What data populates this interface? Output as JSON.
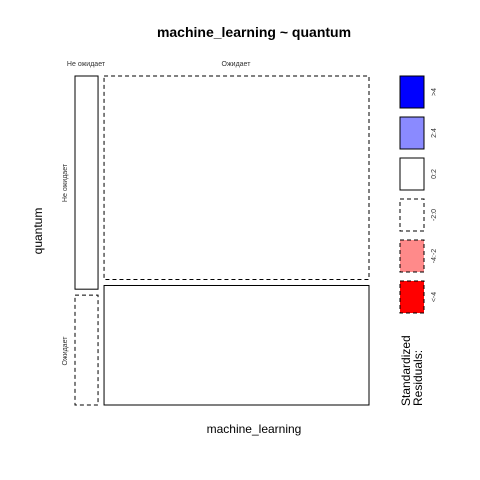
{
  "chart_data": {
    "type": "mosaic",
    "title": "machine_learning ~ quantum",
    "xlabel": "machine_learning",
    "ylabel": "quantum",
    "x_levels": [
      "Не ожидает",
      "Ожидает"
    ],
    "y_levels": [
      "Не ожидает",
      "Ожидает"
    ],
    "x_proportions": [
      0.08,
      0.92
    ],
    "cells": [
      {
        "x": "Не ожидает",
        "y": "Не ожидает",
        "row_proportion": 0.66,
        "residual_class": "0:2"
      },
      {
        "x": "Не ожидает",
        "y": "Ожидает",
        "row_proportion": 0.34,
        "residual_class": "-2:0"
      },
      {
        "x": "Ожидает",
        "y": "Не ожидает",
        "row_proportion": 0.63,
        "residual_class": "-2:0"
      },
      {
        "x": "Ожидает",
        "y": "Ожидает",
        "row_proportion": 0.37,
        "residual_class": "0:2"
      }
    ],
    "legend": {
      "title_lines": [
        "Standardized",
        "Residuals:"
      ],
      "entries": [
        {
          "label": ">4",
          "fill": "#0000ff",
          "dashed": false
        },
        {
          "label": "2:4",
          "fill": "#8a8aff",
          "dashed": false
        },
        {
          "label": "0:2",
          "fill": "#ffffff",
          "dashed": false
        },
        {
          "label": "-2:0",
          "fill": "#ffffff",
          "dashed": true
        },
        {
          "label": "-4:-2",
          "fill": "#ff8a8a",
          "dashed": true
        },
        {
          "label": "<-4",
          "fill": "#ff0000",
          "dashed": true
        }
      ]
    }
  }
}
